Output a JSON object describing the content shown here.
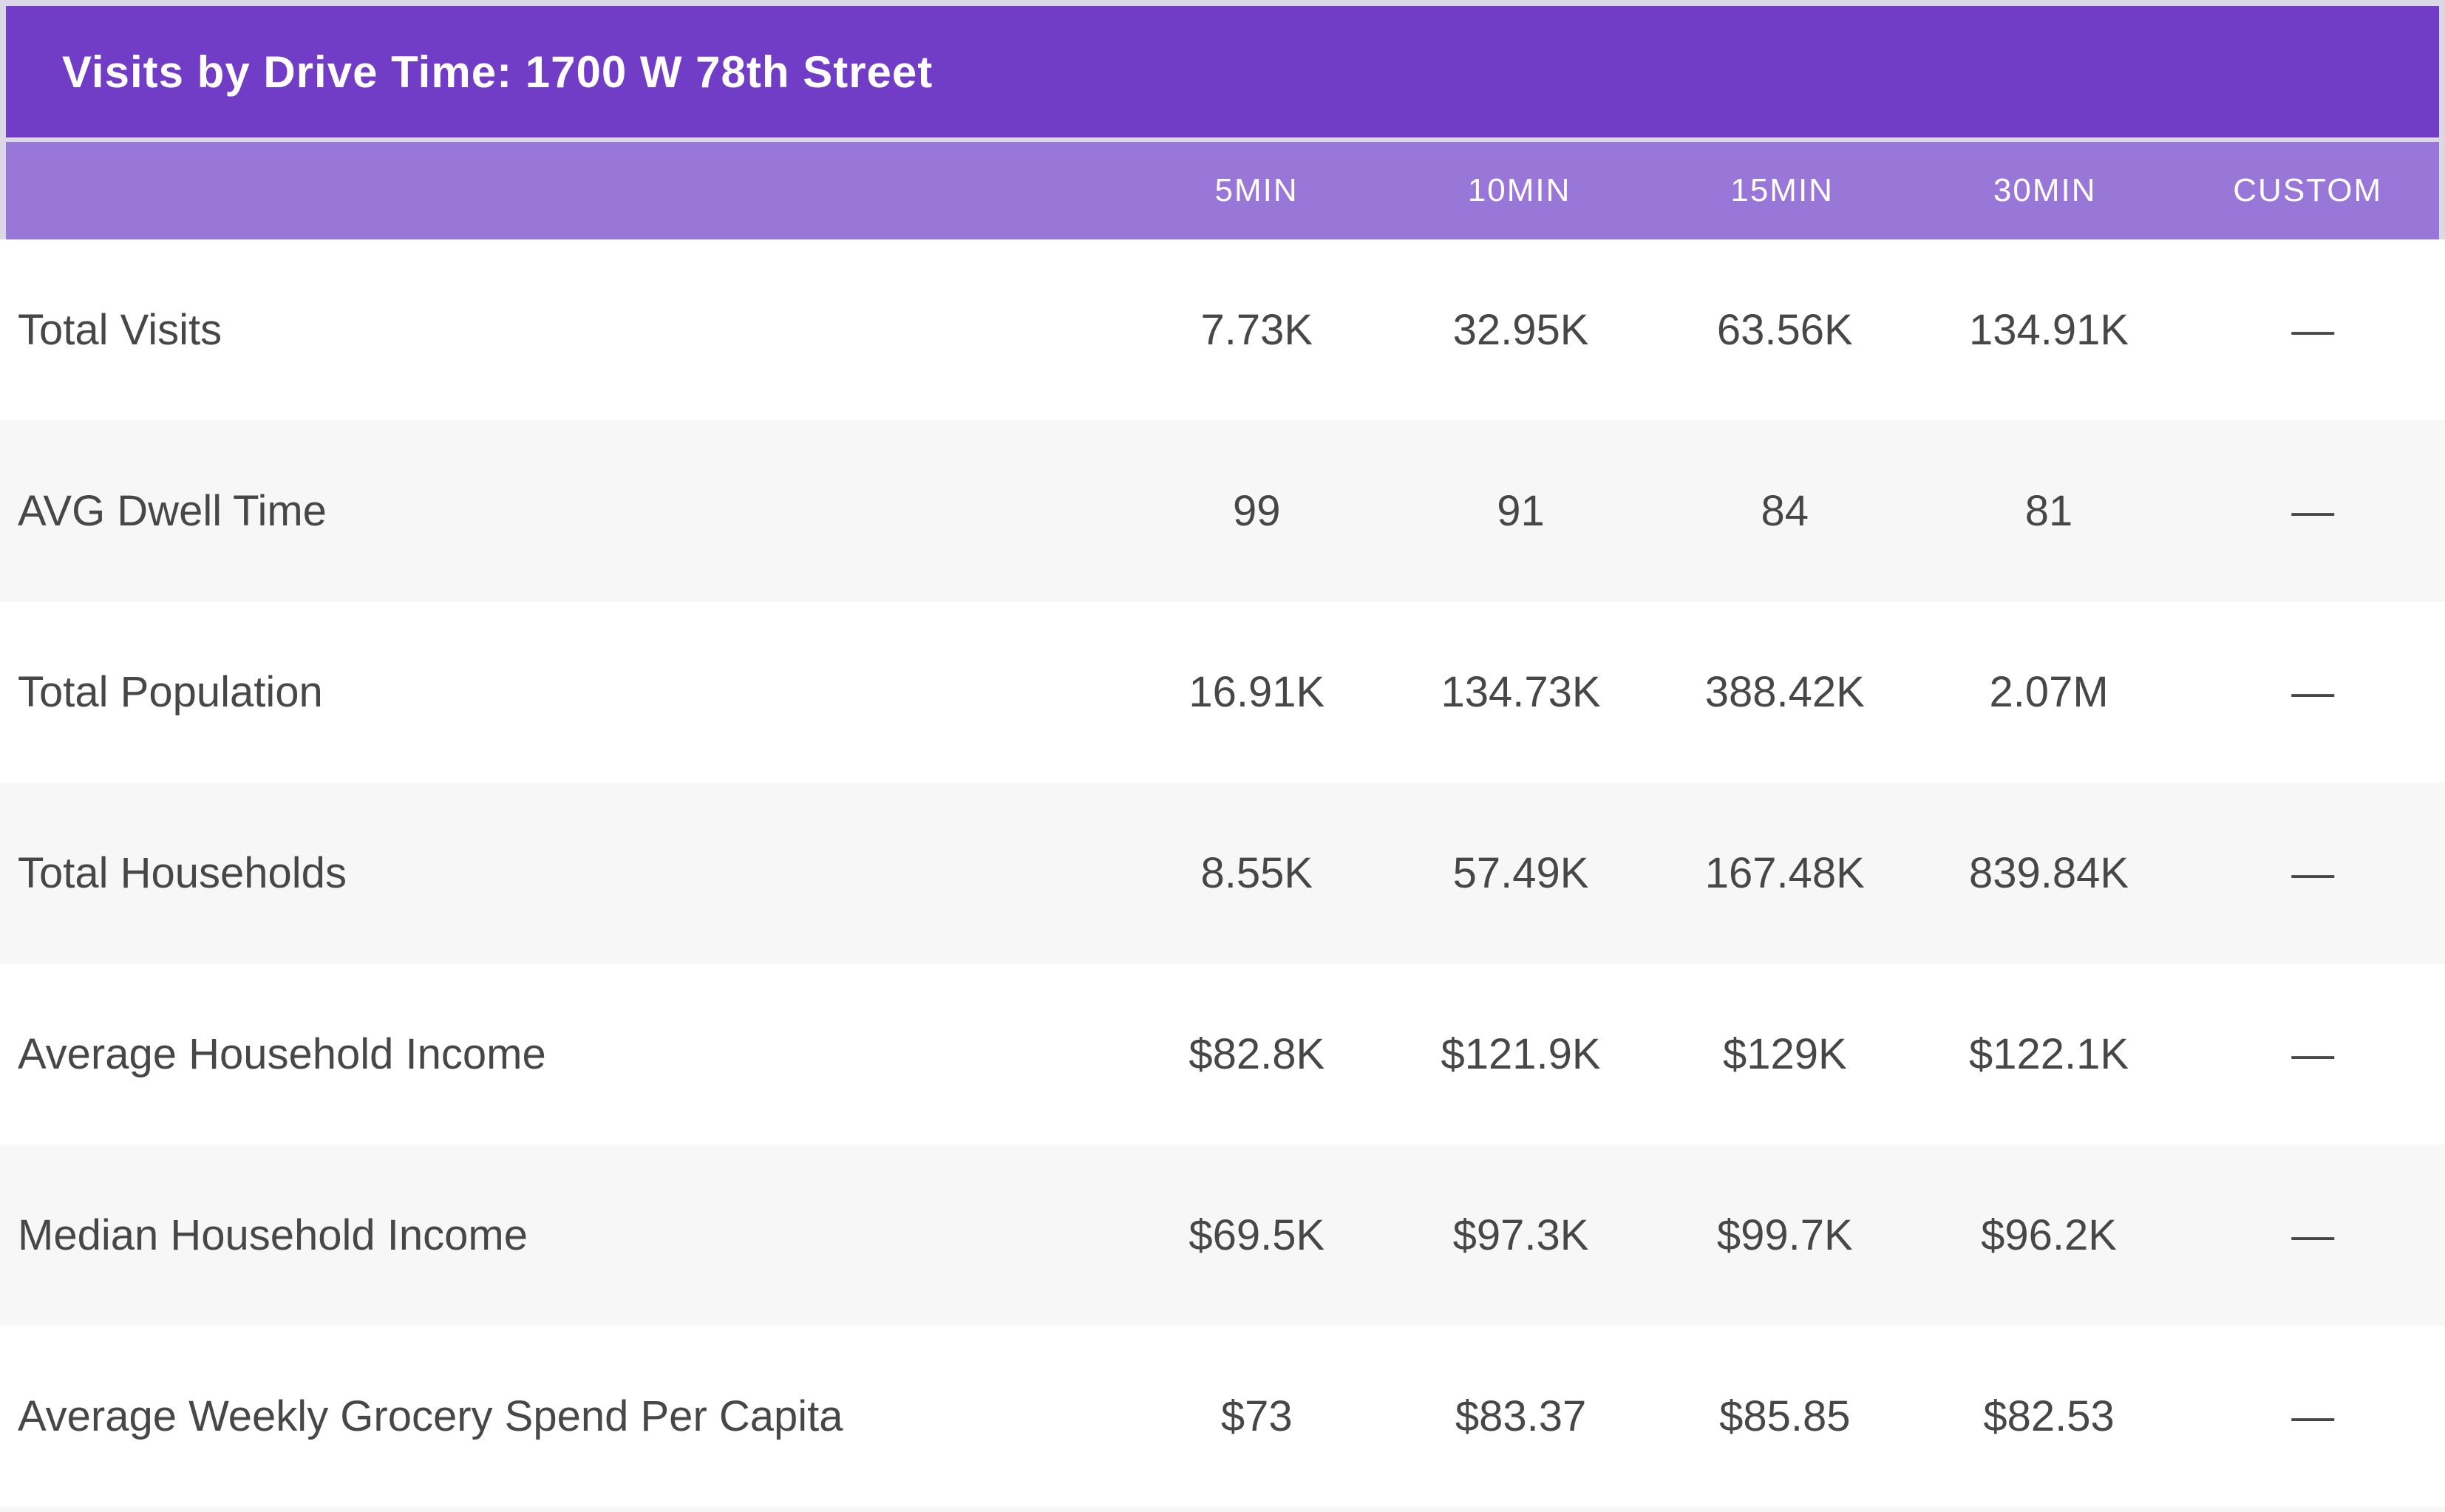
{
  "title_bar": {
    "title": "Visits by Drive Time: 1700 W 78th Street"
  },
  "columns": [
    "5MIN",
    "10MIN",
    "15MIN",
    "30MIN",
    "CUSTOM"
  ],
  "rows": [
    {
      "label": "Total Visits",
      "values": [
        "7.73K",
        "32.95K",
        "63.56K",
        "134.91K",
        "—"
      ]
    },
    {
      "label": "AVG Dwell Time",
      "values": [
        "99",
        "91",
        "84",
        "81",
        "—"
      ]
    },
    {
      "label": "Total Population",
      "values": [
        "16.91K",
        "134.73K",
        "388.42K",
        "2.07M",
        "—"
      ]
    },
    {
      "label": "Total Households",
      "values": [
        "8.55K",
        "57.49K",
        "167.48K",
        "839.84K",
        "—"
      ]
    },
    {
      "label": "Average Household Income",
      "values": [
        "$82.8K",
        "$121.9K",
        "$129K",
        "$122.1K",
        "—"
      ]
    },
    {
      "label": "Median Household Income",
      "values": [
        "$69.5K",
        "$97.3K",
        "$99.7K",
        "$96.2K",
        "—"
      ]
    },
    {
      "label": "Average Weekly Grocery Spend Per Capita",
      "values": [
        "$73",
        "$83.37",
        "$85.85",
        "$82.53",
        "—"
      ]
    }
  ],
  "colors": {
    "title_band": "#713cc6",
    "columns_band": "#9877d8",
    "chrome_border": "#dbd8e5",
    "alt_row": "#f7f7f8",
    "text": "#474747",
    "band_text": "#ffffff"
  }
}
